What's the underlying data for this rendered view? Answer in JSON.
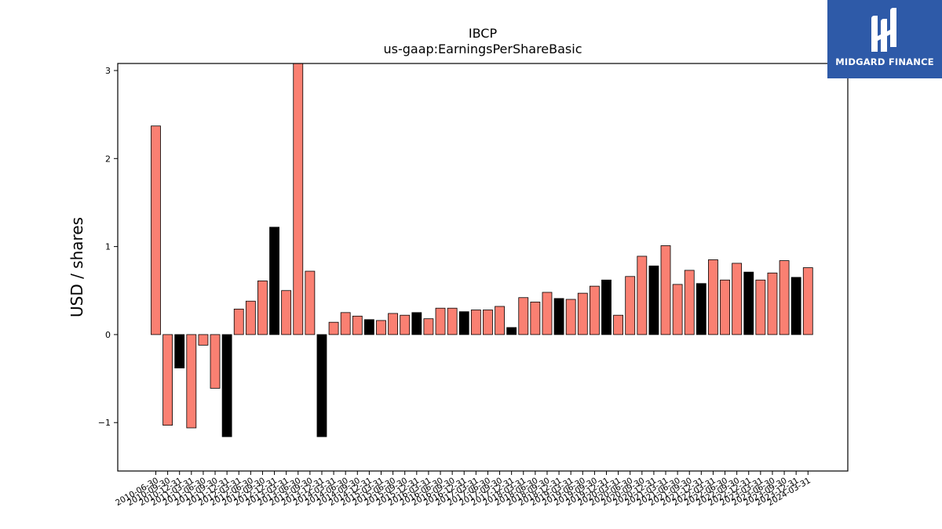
{
  "logo": {
    "text": "MIDGARD FINANCE",
    "bg_color": "#2e5aa8"
  },
  "chart_data": {
    "type": "bar",
    "title": "IBCP",
    "subtitle": "us-gaap:EarningsPerShareBasic",
    "ylabel": "USD / shares",
    "xlabel": "",
    "ylim": [
      -1.55,
      3.08
    ],
    "yticks": [
      -1,
      0,
      1,
      2,
      3
    ],
    "ytick_labels": [
      "−1",
      "0",
      "1",
      "2",
      "3"
    ],
    "grid": false,
    "colors": {
      "salmon": "#fa8072",
      "black": "#000000",
      "edge": "#000000"
    },
    "categories": [
      "2010-06-30",
      "2010-09-30",
      "2010-12-31",
      "2011-03-31",
      "2011-06-30",
      "2011-09-30",
      "2011-12-31",
      "2012-03-31",
      "2012-06-30",
      "2012-09-30",
      "2012-12-31",
      "2013-03-31",
      "2013-06-30",
      "2013-09-30",
      "2013-12-31",
      "2014-03-31",
      "2014-06-30",
      "2014-09-30",
      "2014-12-31",
      "2015-03-31",
      "2015-06-30",
      "2015-09-30",
      "2015-12-31",
      "2016-03-31",
      "2016-06-30",
      "2016-09-30",
      "2016-12-31",
      "2017-03-31",
      "2017-06-30",
      "2017-09-30",
      "2017-12-31",
      "2018-03-31",
      "2018-06-30",
      "2018-09-30",
      "2018-12-31",
      "2019-03-31",
      "2019-06-30",
      "2019-09-30",
      "2019-12-31",
      "2020-03-31",
      "2020-06-30",
      "2020-09-30",
      "2020-12-31",
      "2021-03-31",
      "2021-06-30",
      "2021-09-30",
      "2021-12-31",
      "2022-03-31",
      "2022-06-30",
      "2022-09-30",
      "2022-12-31",
      "2023-03-31",
      "2023-06-30",
      "2023-09-30",
      "2023-12-31",
      "2024-03-31"
    ],
    "values": [
      2.37,
      -1.03,
      -0.38,
      -1.06,
      -0.12,
      -0.61,
      -1.16,
      0.29,
      0.38,
      0.61,
      1.22,
      0.5,
      3.1,
      0.72,
      -1.16,
      0.14,
      0.25,
      0.21,
      0.17,
      0.16,
      0.24,
      0.22,
      0.25,
      0.18,
      0.3,
      0.3,
      0.26,
      0.28,
      0.28,
      0.32,
      0.08,
      0.42,
      0.37,
      0.48,
      0.41,
      0.4,
      0.47,
      0.55,
      0.62,
      0.22,
      0.66,
      0.89,
      0.78,
      1.01,
      0.57,
      0.73,
      0.58,
      0.85,
      0.62,
      0.81,
      0.71,
      0.62,
      0.7,
      0.84,
      0.65,
      0.76
    ],
    "bar_colors": [
      "salmon",
      "salmon",
      "black",
      "salmon",
      "salmon",
      "salmon",
      "black",
      "salmon",
      "salmon",
      "salmon",
      "black",
      "salmon",
      "salmon",
      "salmon",
      "black",
      "salmon",
      "salmon",
      "salmon",
      "black",
      "salmon",
      "salmon",
      "salmon",
      "black",
      "salmon",
      "salmon",
      "salmon",
      "black",
      "salmon",
      "salmon",
      "salmon",
      "black",
      "salmon",
      "salmon",
      "salmon",
      "black",
      "salmon",
      "salmon",
      "salmon",
      "black",
      "salmon",
      "salmon",
      "salmon",
      "black",
      "salmon",
      "salmon",
      "salmon",
      "black",
      "salmon",
      "salmon",
      "salmon",
      "black",
      "salmon",
      "salmon",
      "salmon",
      "black",
      "salmon"
    ]
  }
}
